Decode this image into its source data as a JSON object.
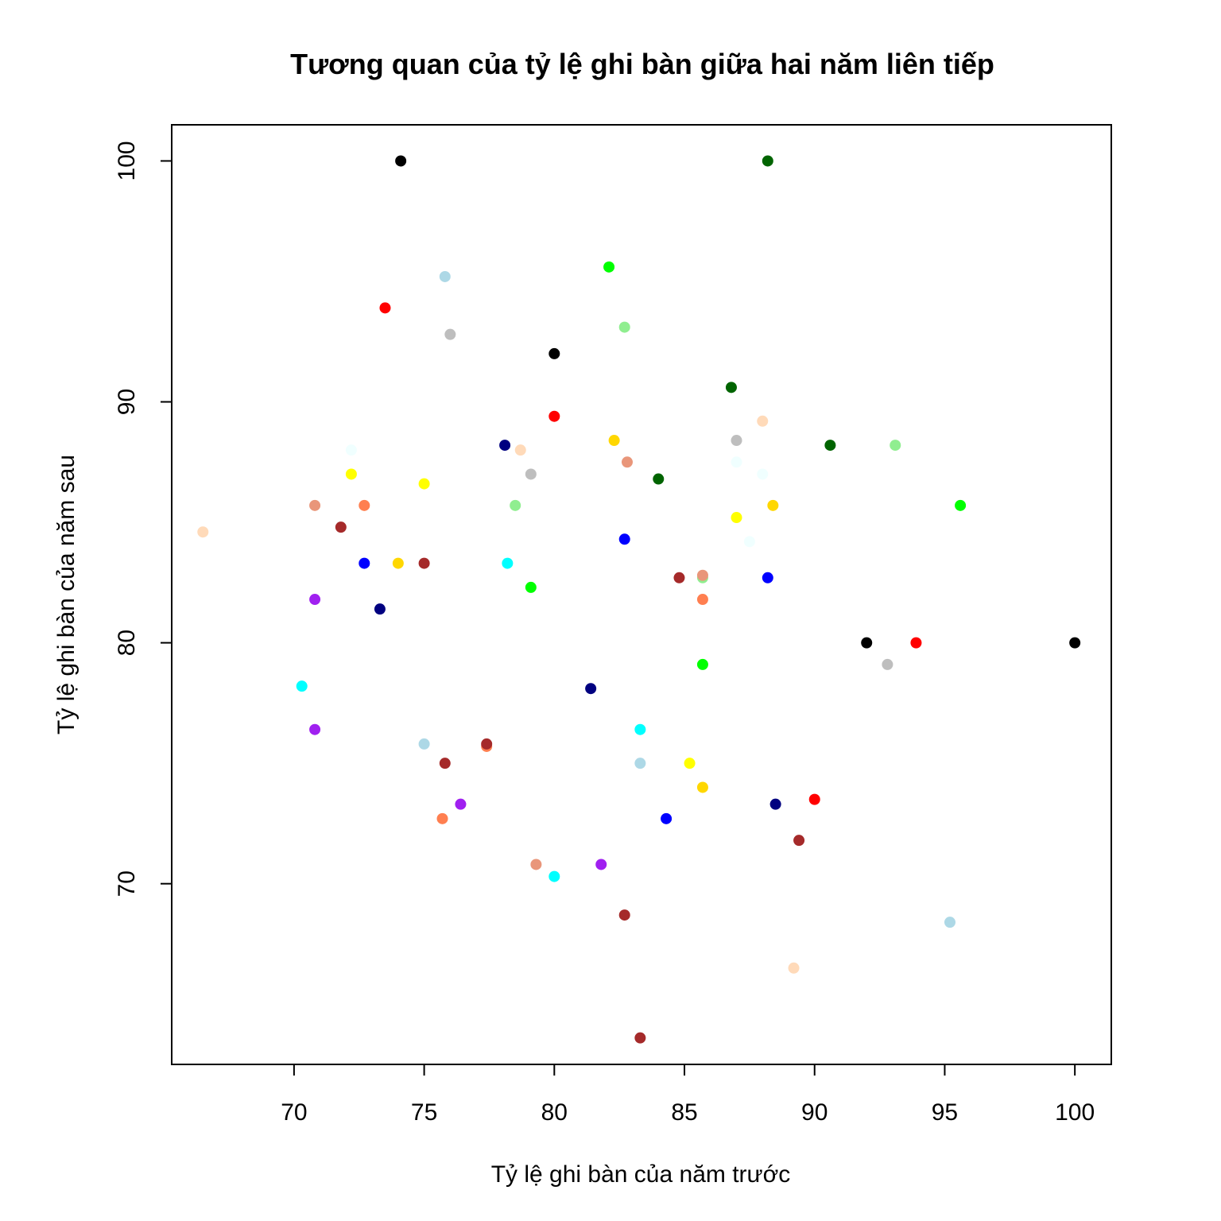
{
  "chart_data": {
    "type": "scatter",
    "title": "Tương quan của tỷ lệ ghi bàn giữa hai năm liên tiếp",
    "xlabel": "Tỷ lệ ghi bàn của năm trước",
    "ylabel": "Tỷ lệ ghi bàn của năm sau",
    "xlim": [
      65.3,
      101.4
    ],
    "ylim": [
      62.5,
      101.5
    ],
    "x_ticks": [
      70,
      75,
      80,
      85,
      90,
      95,
      100
    ],
    "y_ticks": [
      70,
      80,
      90,
      100
    ],
    "grid": false,
    "legend": "none",
    "points": [
      {
        "x": 74.1,
        "y": 100.0,
        "color": "#000000"
      },
      {
        "x": 80.0,
        "y": 92.0,
        "color": "#000000"
      },
      {
        "x": 92.0,
        "y": 80.0,
        "color": "#000000"
      },
      {
        "x": 100.0,
        "y": 80.0,
        "color": "#000000"
      },
      {
        "x": 88.2,
        "y": 100.0,
        "color": "#006400"
      },
      {
        "x": 86.8,
        "y": 90.6,
        "color": "#006400"
      },
      {
        "x": 90.6,
        "y": 88.2,
        "color": "#006400"
      },
      {
        "x": 84.0,
        "y": 86.8,
        "color": "#006400"
      },
      {
        "x": 75.8,
        "y": 95.2,
        "color": "#ADD8E6"
      },
      {
        "x": 75.0,
        "y": 75.8,
        "color": "#ADD8E6"
      },
      {
        "x": 83.3,
        "y": 75.0,
        "color": "#ADD8E6"
      },
      {
        "x": 95.2,
        "y": 68.4,
        "color": "#ADD8E6"
      },
      {
        "x": 73.5,
        "y": 93.9,
        "color": "#FF0000"
      },
      {
        "x": 80.0,
        "y": 89.4,
        "color": "#FF0000"
      },
      {
        "x": 93.9,
        "y": 80.0,
        "color": "#FF0000"
      },
      {
        "x": 90.0,
        "y": 73.5,
        "color": "#FF0000"
      },
      {
        "x": 76.0,
        "y": 92.8,
        "color": "#BEBEBE"
      },
      {
        "x": 79.1,
        "y": 87.0,
        "color": "#BEBEBE"
      },
      {
        "x": 87.0,
        "y": 88.4,
        "color": "#BEBEBE"
      },
      {
        "x": 92.8,
        "y": 79.1,
        "color": "#BEBEBE"
      },
      {
        "x": 82.1,
        "y": 95.6,
        "color": "#00FF00"
      },
      {
        "x": 79.1,
        "y": 82.3,
        "color": "#00FF00"
      },
      {
        "x": 95.6,
        "y": 85.7,
        "color": "#00FF00"
      },
      {
        "x": 85.7,
        "y": 79.1,
        "color": "#00FF00"
      },
      {
        "x": 82.7,
        "y": 93.1,
        "color": "#90EE90"
      },
      {
        "x": 78.5,
        "y": 85.7,
        "color": "#90EE90"
      },
      {
        "x": 93.1,
        "y": 88.2,
        "color": "#90EE90"
      },
      {
        "x": 85.7,
        "y": 82.7,
        "color": "#90EE90"
      },
      {
        "x": 88.0,
        "y": 89.2,
        "color": "#FFDAB9"
      },
      {
        "x": 78.7,
        "y": 88.0,
        "color": "#FFDAB9"
      },
      {
        "x": 66.5,
        "y": 84.6,
        "color": "#FFDAB9"
      },
      {
        "x": 89.2,
        "y": 66.5,
        "color": "#FFDAB9"
      },
      {
        "x": 72.2,
        "y": 88.0,
        "color": "#F0FFFF"
      },
      {
        "x": 87.0,
        "y": 87.5,
        "color": "#F0FFFF"
      },
      {
        "x": 88.0,
        "y": 87.0,
        "color": "#F0FFFF"
      },
      {
        "x": 87.5,
        "y": 84.2,
        "color": "#F0FFFF"
      },
      {
        "x": 78.1,
        "y": 88.2,
        "color": "#000080"
      },
      {
        "x": 73.3,
        "y": 81.4,
        "color": "#000080"
      },
      {
        "x": 81.4,
        "y": 78.1,
        "color": "#000080"
      },
      {
        "x": 88.5,
        "y": 73.3,
        "color": "#000080"
      },
      {
        "x": 82.3,
        "y": 88.4,
        "color": "#FFD700"
      },
      {
        "x": 74.0,
        "y": 83.3,
        "color": "#FFD700"
      },
      {
        "x": 88.4,
        "y": 85.7,
        "color": "#FFD700"
      },
      {
        "x": 85.7,
        "y": 74.0,
        "color": "#FFD700"
      },
      {
        "x": 82.8,
        "y": 87.5,
        "color": "#E9967A"
      },
      {
        "x": 70.8,
        "y": 85.7,
        "color": "#E9967A"
      },
      {
        "x": 85.7,
        "y": 82.8,
        "color": "#E9967A"
      },
      {
        "x": 79.3,
        "y": 70.8,
        "color": "#E9967A"
      },
      {
        "x": 72.2,
        "y": 87.0,
        "color": "#FFFF00"
      },
      {
        "x": 75.0,
        "y": 86.6,
        "color": "#FFFF00"
      },
      {
        "x": 87.0,
        "y": 85.2,
        "color": "#FFFF00"
      },
      {
        "x": 85.2,
        "y": 75.0,
        "color": "#FFFF00"
      },
      {
        "x": 72.7,
        "y": 85.7,
        "color": "#FF7F50"
      },
      {
        "x": 85.7,
        "y": 81.8,
        "color": "#FF7F50"
      },
      {
        "x": 77.4,
        "y": 75.7,
        "color": "#FF7F50"
      },
      {
        "x": 75.7,
        "y": 72.7,
        "color": "#FF7F50"
      },
      {
        "x": 71.8,
        "y": 84.8,
        "color": "#A52A2A"
      },
      {
        "x": 75.0,
        "y": 83.3,
        "color": "#A52A2A"
      },
      {
        "x": 84.8,
        "y": 82.7,
        "color": "#A52A2A"
      },
      {
        "x": 77.4,
        "y": 75.8,
        "color": "#A52A2A"
      },
      {
        "x": 75.8,
        "y": 75.0,
        "color": "#A52A2A"
      },
      {
        "x": 89.4,
        "y": 71.8,
        "color": "#A52A2A"
      },
      {
        "x": 82.7,
        "y": 68.7,
        "color": "#A52A2A"
      },
      {
        "x": 83.3,
        "y": 63.6,
        "color": "#A52A2A"
      },
      {
        "x": 82.7,
        "y": 84.3,
        "color": "#0000FF"
      },
      {
        "x": 72.7,
        "y": 83.3,
        "color": "#0000FF"
      },
      {
        "x": 88.2,
        "y": 82.7,
        "color": "#0000FF"
      },
      {
        "x": 84.3,
        "y": 72.7,
        "color": "#0000FF"
      },
      {
        "x": 78.2,
        "y": 83.3,
        "color": "#00FFFF"
      },
      {
        "x": 70.3,
        "y": 78.2,
        "color": "#00FFFF"
      },
      {
        "x": 83.3,
        "y": 76.4,
        "color": "#00FFFF"
      },
      {
        "x": 80.0,
        "y": 70.3,
        "color": "#00FFFF"
      },
      {
        "x": 70.8,
        "y": 81.8,
        "color": "#A020F0"
      },
      {
        "x": 70.8,
        "y": 76.4,
        "color": "#A020F0"
      },
      {
        "x": 76.4,
        "y": 73.3,
        "color": "#A020F0"
      },
      {
        "x": 81.8,
        "y": 70.8,
        "color": "#A020F0"
      }
    ]
  }
}
